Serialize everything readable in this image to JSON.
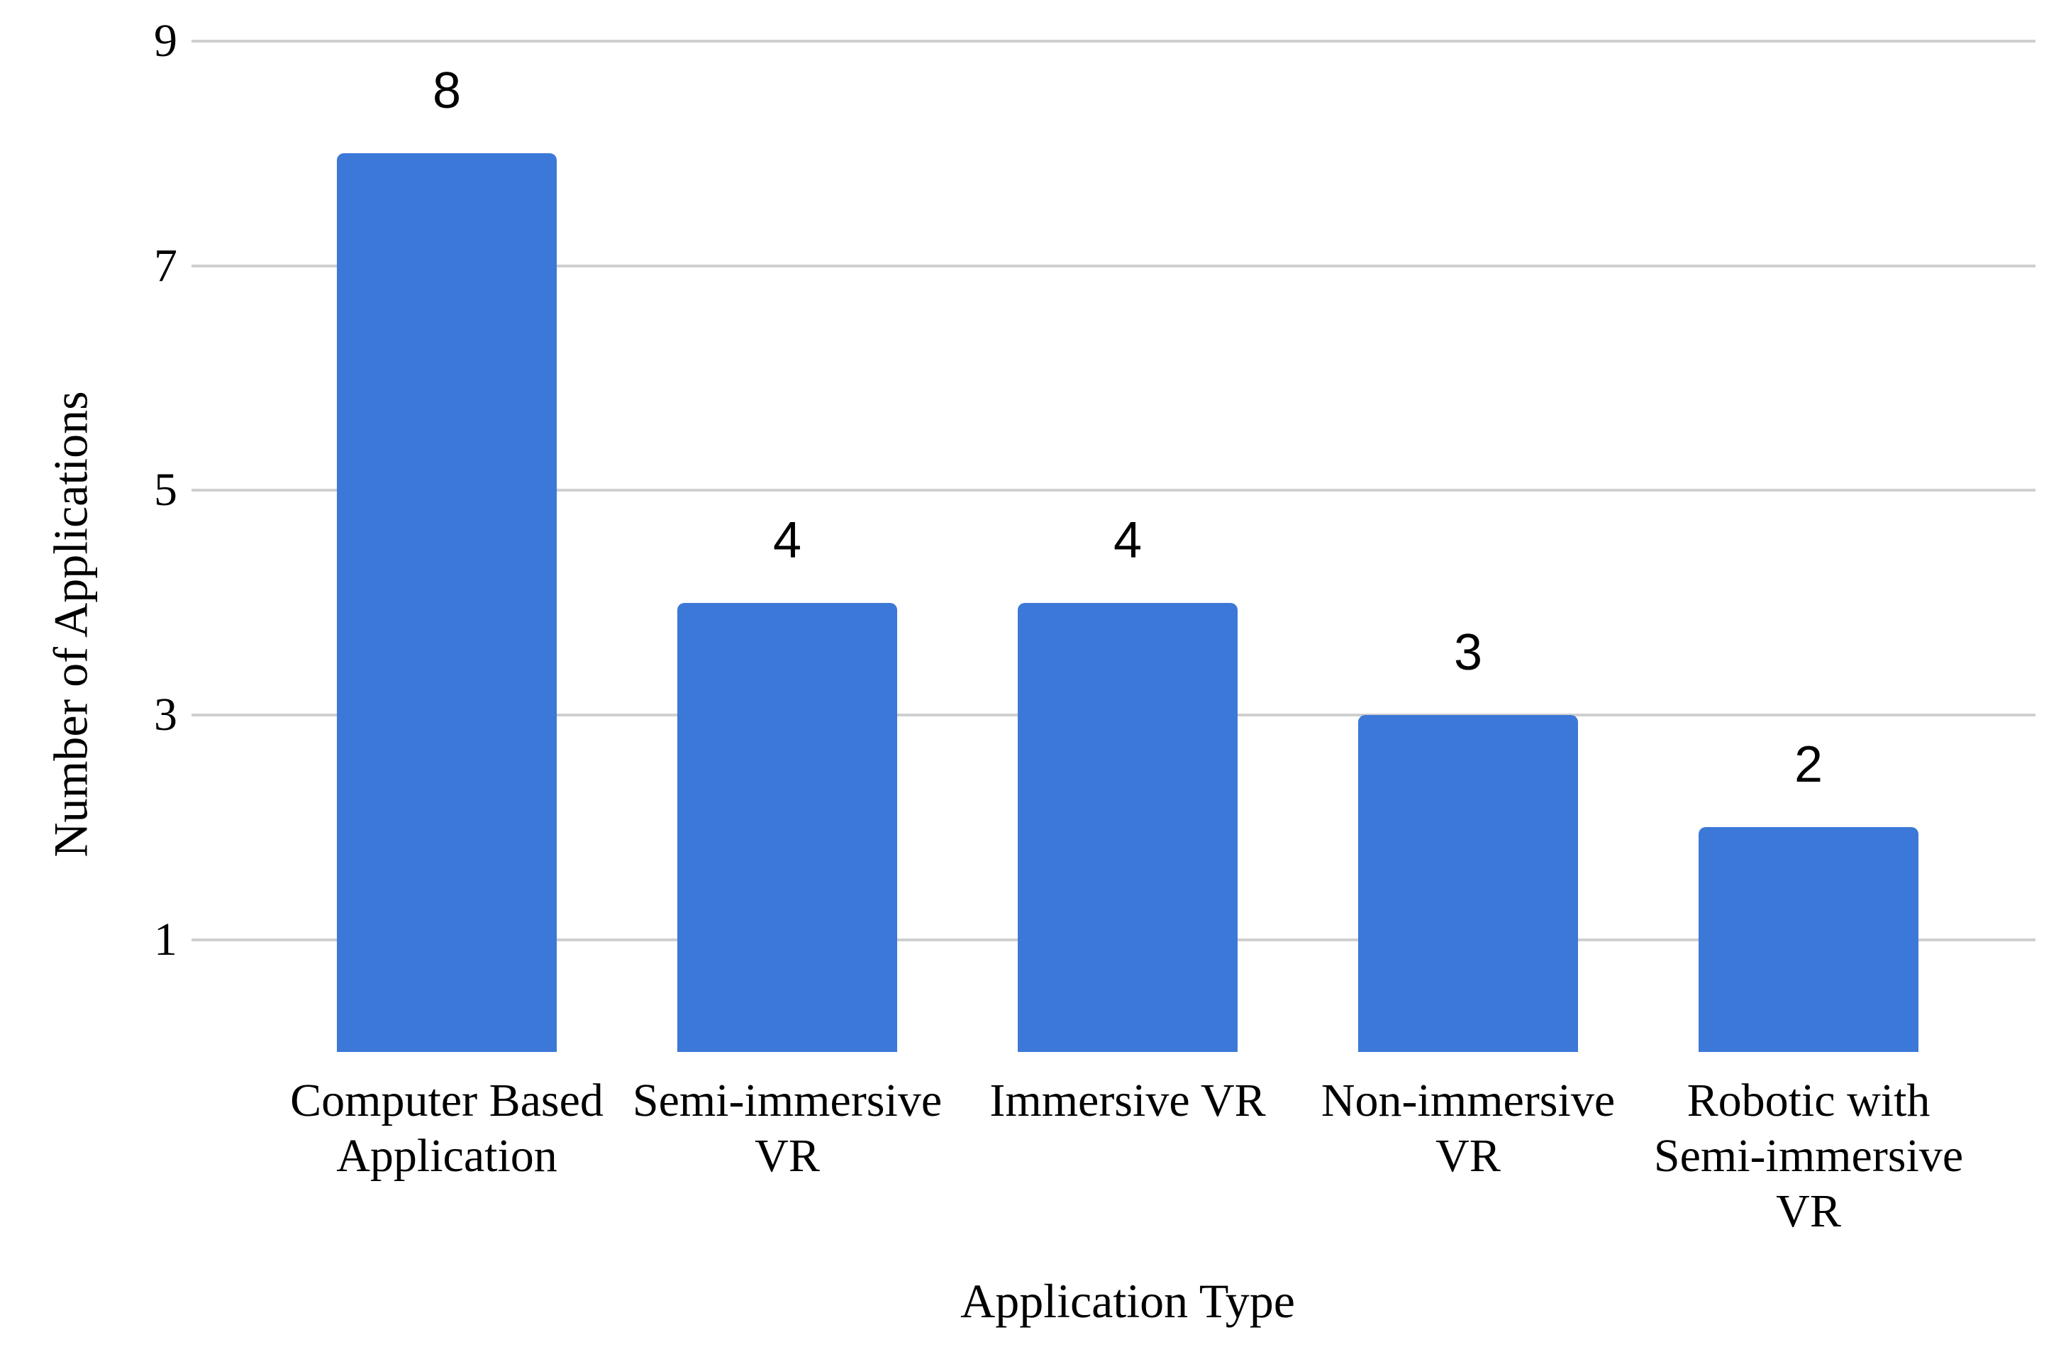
{
  "chart_data": {
    "type": "bar",
    "categories": [
      "Computer Based Application",
      "Semi-immersive VR",
      "Immersive VR",
      "Non-immersive VR",
      "Robotic with Semi-immersive VR"
    ],
    "category_lines": [
      [
        "Computer Based",
        "Application"
      ],
      [
        "Semi-immersive",
        "VR"
      ],
      [
        "Immersive VR"
      ],
      [
        "Non-immersive",
        "VR"
      ],
      [
        "Robotic with",
        "Semi-immersive",
        "VR"
      ]
    ],
    "values": [
      8,
      4,
      4,
      3,
      2
    ],
    "value_labels": [
      "8",
      "4",
      "4",
      "3",
      "2"
    ],
    "title": "",
    "xlabel": "Application Type",
    "ylabel": "Number of Applications",
    "ylim": [
      0,
      9
    ],
    "yticks": [
      9,
      7,
      5,
      3,
      1
    ],
    "grid": true,
    "legend_position": "none",
    "colors": {
      "bar": "#3c78d8",
      "gridline": "#cfcfcf",
      "text": "#000000",
      "background": "#ffffff"
    }
  }
}
